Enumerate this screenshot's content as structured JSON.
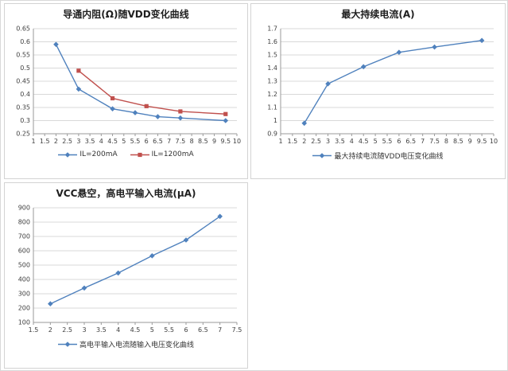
{
  "style": {
    "grid_color": "#d9d9d9",
    "axis_color": "#9a9a9a",
    "tick_text_color": "#3f3f3f",
    "panel_border_color": "#d3d3d3",
    "series_blue": "#4F81BD",
    "series_red": "#C0504D"
  },
  "chart_data": [
    {
      "type": "line",
      "title": "导通内阻(Ω)随VDD变化曲线",
      "xlabel": "",
      "ylabel": "",
      "x_range": [
        1,
        10
      ],
      "y_range": [
        0.25,
        0.65
      ],
      "x_ticks": [
        "1",
        "1.5",
        "2",
        "2.5",
        "3",
        "3.5",
        "4",
        "4.5",
        "5",
        "5.5",
        "6",
        "6.5",
        "7",
        "7.5",
        "8",
        "8.5",
        "9",
        "9.5",
        "10"
      ],
      "y_ticks": [
        "0.25",
        "0.3",
        "0.35",
        "0.4",
        "0.45",
        "0.5",
        "0.55",
        "0.6",
        "0.65"
      ],
      "grid": "horizontal",
      "legend_position": "bottom",
      "series": [
        {
          "name": "IL=200mA",
          "color": "#4F81BD",
          "marker": "diamond",
          "points": [
            [
              2,
              0.59
            ],
            [
              3,
              0.42
            ],
            [
              4.5,
              0.345
            ],
            [
              5.5,
              0.33
            ],
            [
              6.5,
              0.315
            ],
            [
              7.5,
              0.31
            ],
            [
              9.5,
              0.3
            ]
          ]
        },
        {
          "name": "IL=1200mA",
          "color": "#C0504D",
          "marker": "square",
          "points": [
            [
              3,
              0.49
            ],
            [
              4.5,
              0.385
            ],
            [
              6,
              0.355
            ],
            [
              7.5,
              0.335
            ],
            [
              9.5,
              0.325
            ]
          ]
        }
      ]
    },
    {
      "type": "line",
      "title": "最大持续电流(A)",
      "xlabel": "",
      "ylabel": "",
      "x_range": [
        1,
        10
      ],
      "y_range": [
        0.9,
        1.7
      ],
      "x_ticks": [
        "1",
        "1.5",
        "2",
        "2.5",
        "3",
        "3.5",
        "4",
        "4.5",
        "5",
        "5.5",
        "6",
        "6.5",
        "7",
        "7.5",
        "8",
        "8.5",
        "9",
        "9.5",
        "10"
      ],
      "y_ticks": [
        "0.9",
        "1",
        "1.1",
        "1.2",
        "1.3",
        "1.4",
        "1.5",
        "1.6",
        "1.7"
      ],
      "grid": "horizontal",
      "legend_position": "bottom",
      "series": [
        {
          "name": "最大持续电流随VDD电压变化曲线",
          "color": "#4F81BD",
          "marker": "diamond",
          "points": [
            [
              2,
              0.98
            ],
            [
              3,
              1.28
            ],
            [
              4.5,
              1.41
            ],
            [
              6,
              1.52
            ],
            [
              7.5,
              1.56
            ],
            [
              9.5,
              1.61
            ]
          ]
        }
      ]
    },
    {
      "type": "line",
      "title": "VCC悬空，高电平输入电流(μA)",
      "xlabel": "",
      "ylabel": "",
      "x_range": [
        1.5,
        7.5
      ],
      "y_range": [
        100,
        900
      ],
      "x_ticks": [
        "1.5",
        "2",
        "2.5",
        "3",
        "3.5",
        "4",
        "4.5",
        "5",
        "5.5",
        "6",
        "6.5",
        "7",
        "7.5"
      ],
      "y_ticks": [
        "100",
        "200",
        "300",
        "400",
        "500",
        "600",
        "700",
        "800",
        "900"
      ],
      "grid": "horizontal",
      "legend_position": "bottom",
      "series": [
        {
          "name": "高电平输入电流随输入电压变化曲线",
          "color": "#4F81BD",
          "marker": "diamond",
          "points": [
            [
              2,
              230
            ],
            [
              3,
              340
            ],
            [
              4,
              445
            ],
            [
              5,
              565
            ],
            [
              6,
              675
            ],
            [
              7,
              840
            ]
          ]
        }
      ]
    }
  ]
}
